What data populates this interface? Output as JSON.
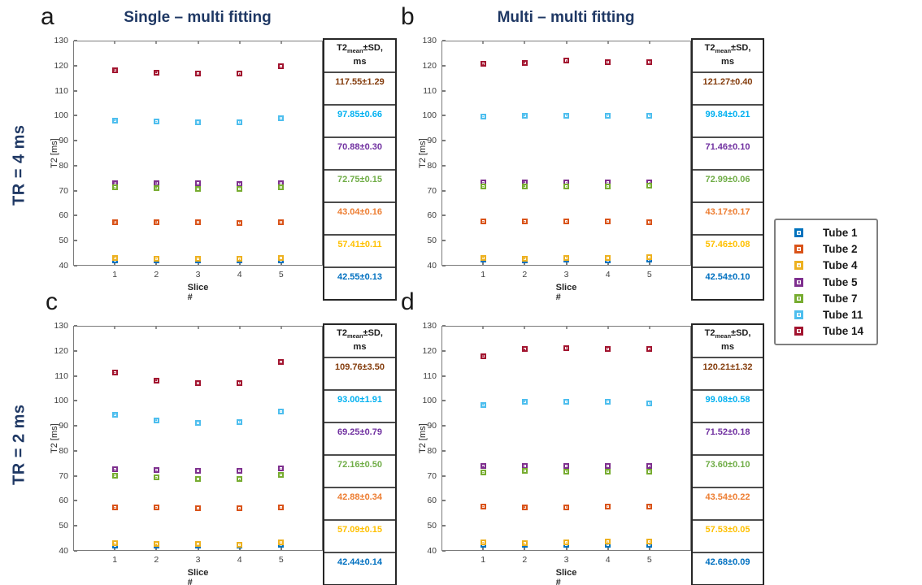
{
  "figure": {
    "panels": [
      {
        "letter": "a",
        "title": "Single – multi fitting"
      },
      {
        "letter": "b",
        "title": "Multi – multi fitting"
      },
      {
        "letter": "c",
        "title": ""
      },
      {
        "letter": "d",
        "title": ""
      }
    ],
    "row_labels": [
      "TR = 4 ms",
      "TR = 2 ms"
    ],
    "title_color": "#1F3864"
  },
  "table_header": {
    "t2": "T2",
    "sub": "mean",
    "rest": "±SD,",
    "unit": "ms"
  },
  "legend": {
    "items": [
      {
        "label": "Tube 1",
        "color": "#0072BD"
      },
      {
        "label": "Tube 2",
        "color": "#D95319"
      },
      {
        "label": "Tube 4",
        "color": "#EDB120"
      },
      {
        "label": "Tube 5",
        "color": "#7E2F8E"
      },
      {
        "label": "Tube 7",
        "color": "#77AC30"
      },
      {
        "label": "Tube 11",
        "color": "#4DBEEE"
      },
      {
        "label": "Tube 14",
        "color": "#A2142F"
      }
    ]
  },
  "chart_data": [
    {
      "id": "a",
      "type": "scatter",
      "title": "Single – multi fitting",
      "row_label": "TR = 4 ms",
      "xlabel": "Slice #",
      "ylabel": "T2 [ms]",
      "x": [
        1,
        2,
        3,
        4,
        5
      ],
      "xlim": [
        0,
        6
      ],
      "ylim": [
        40,
        130
      ],
      "yticks": [
        40,
        50,
        60,
        70,
        80,
        90,
        100,
        110,
        120,
        130
      ],
      "series": [
        {
          "name": "Tube 1",
          "color": "#0072BD",
          "values": [
            42.2,
            42.0,
            42.1,
            42.0,
            42.2
          ]
        },
        {
          "name": "Tube 2",
          "color": "#D95319",
          "values": [
            57.5,
            57.5,
            57.4,
            57.2,
            57.5
          ]
        },
        {
          "name": "Tube 4",
          "color": "#EDB120",
          "values": [
            43.1,
            42.7,
            42.9,
            42.6,
            43.0
          ]
        },
        {
          "name": "Tube 5",
          "color": "#7E2F8E",
          "values": [
            73.1,
            73.0,
            72.9,
            72.8,
            73.0
          ]
        },
        {
          "name": "Tube 7",
          "color": "#77AC30",
          "values": [
            71.3,
            71.1,
            70.8,
            70.7,
            71.4
          ]
        },
        {
          "name": "Tube 11",
          "color": "#4DBEEE",
          "values": [
            98.1,
            97.6,
            97.4,
            97.4,
            99.0
          ]
        },
        {
          "name": "Tube 14",
          "color": "#A2142F",
          "values": [
            118.2,
            117.2,
            116.7,
            116.7,
            119.7
          ]
        }
      ],
      "table_rows": [
        {
          "text": "117.55±1.29",
          "color": "#843C0C"
        },
        {
          "text": "97.85±0.66",
          "color": "#00B0F0"
        },
        {
          "text": "70.88±0.30",
          "color": "#7030A0"
        },
        {
          "text": "72.75±0.15",
          "color": "#70AD47"
        },
        {
          "text": "43.04±0.16",
          "color": "#ED7D31"
        },
        {
          "text": "57.41±0.11",
          "color": "#FFC000"
        },
        {
          "text": "42.55±0.13",
          "color": "#0070C0"
        }
      ]
    },
    {
      "id": "b",
      "type": "scatter",
      "title": "Multi – multi fitting",
      "row_label": "TR = 4 ms",
      "xlabel": "Slice #",
      "ylabel": "T2 [ms]",
      "x": [
        1,
        2,
        3,
        4,
        5
      ],
      "xlim": [
        0,
        6
      ],
      "ylim": [
        40,
        130
      ],
      "yticks": [
        40,
        50,
        60,
        70,
        80,
        90,
        100,
        110,
        120,
        130
      ],
      "series": [
        {
          "name": "Tube 1",
          "color": "#0072BD",
          "values": [
            42.3,
            42.2,
            42.3,
            42.2,
            42.3
          ]
        },
        {
          "name": "Tube 2",
          "color": "#D95319",
          "values": [
            57.7,
            57.7,
            57.6,
            57.6,
            57.4
          ]
        },
        {
          "name": "Tube 4",
          "color": "#EDB120",
          "values": [
            43.2,
            42.9,
            43.2,
            43.0,
            43.4
          ]
        },
        {
          "name": "Tube 5",
          "color": "#7E2F8E",
          "values": [
            73.3,
            73.4,
            73.3,
            73.3,
            73.3
          ]
        },
        {
          "name": "Tube 7",
          "color": "#77AC30",
          "values": [
            71.6,
            71.8,
            71.6,
            71.6,
            71.9
          ]
        },
        {
          "name": "Tube 11",
          "color": "#4DBEEE",
          "values": [
            99.5,
            100.0,
            100.0,
            100.0,
            100.0
          ]
        },
        {
          "name": "Tube 14",
          "color": "#A2142F",
          "values": [
            120.6,
            121.1,
            121.9,
            121.4,
            121.4
          ]
        }
      ],
      "table_rows": [
        {
          "text": "121.27±0.40",
          "color": "#843C0C"
        },
        {
          "text": "99.84±0.21",
          "color": "#00B0F0"
        },
        {
          "text": "71.46±0.10",
          "color": "#7030A0"
        },
        {
          "text": "72.99±0.06",
          "color": "#70AD47"
        },
        {
          "text": "43.17±0.17",
          "color": "#ED7D31"
        },
        {
          "text": "57.46±0.08",
          "color": "#FFC000"
        },
        {
          "text": "42.54±0.10",
          "color": "#0070C0"
        }
      ]
    },
    {
      "id": "c",
      "type": "scatter",
      "title": "",
      "row_label": "TR = 2 ms",
      "xlabel": "Slice #",
      "ylabel": "T2 [ms]",
      "x": [
        1,
        2,
        3,
        4,
        5
      ],
      "xlim": [
        0,
        6
      ],
      "ylim": [
        40,
        130
      ],
      "yticks": [
        40,
        50,
        60,
        70,
        80,
        90,
        100,
        110,
        120,
        130
      ],
      "series": [
        {
          "name": "Tube 1",
          "color": "#0072BD",
          "values": [
            42.2,
            42.1,
            42.1,
            42.0,
            42.3
          ]
        },
        {
          "name": "Tube 2",
          "color": "#D95319",
          "values": [
            57.3,
            57.3,
            57.0,
            57.0,
            57.3
          ]
        },
        {
          "name": "Tube 4",
          "color": "#EDB120",
          "values": [
            43.0,
            42.6,
            42.6,
            42.4,
            43.5
          ]
        },
        {
          "name": "Tube 5",
          "color": "#7E2F8E",
          "values": [
            72.6,
            72.3,
            71.9,
            71.9,
            72.9
          ]
        },
        {
          "name": "Tube 7",
          "color": "#77AC30",
          "values": [
            70.0,
            69.4,
            68.7,
            68.6,
            70.5
          ]
        },
        {
          "name": "Tube 11",
          "color": "#4DBEEE",
          "values": [
            94.5,
            92.3,
            91.2,
            91.5,
            95.7
          ]
        },
        {
          "name": "Tube 14",
          "color": "#A2142F",
          "values": [
            111.2,
            108.2,
            107.1,
            107.1,
            115.4
          ]
        }
      ],
      "table_rows": [
        {
          "text": "109.76±3.50",
          "color": "#843C0C"
        },
        {
          "text": "93.00±1.91",
          "color": "#00B0F0"
        },
        {
          "text": "69.25±0.79",
          "color": "#7030A0"
        },
        {
          "text": "72.16±0.50",
          "color": "#70AD47"
        },
        {
          "text": "42.88±0.34",
          "color": "#ED7D31"
        },
        {
          "text": "57.09±0.15",
          "color": "#FFC000"
        },
        {
          "text": "42.44±0.14",
          "color": "#0070C0"
        }
      ]
    },
    {
      "id": "d",
      "type": "scatter",
      "title": "",
      "row_label": "TR = 2 ms",
      "xlabel": "Slice #",
      "ylabel": "T2 [ms]",
      "x": [
        1,
        2,
        3,
        4,
        5
      ],
      "xlim": [
        0,
        6
      ],
      "ylim": [
        40,
        130
      ],
      "yticks": [
        40,
        50,
        60,
        70,
        80,
        90,
        100,
        110,
        120,
        130
      ],
      "series": [
        {
          "name": "Tube 1",
          "color": "#0072BD",
          "values": [
            42.4,
            42.3,
            42.4,
            42.4,
            42.4
          ]
        },
        {
          "name": "Tube 2",
          "color": "#D95319",
          "values": [
            57.6,
            57.5,
            57.5,
            57.6,
            57.8
          ]
        },
        {
          "name": "Tube 4",
          "color": "#EDB120",
          "values": [
            43.4,
            43.0,
            43.4,
            43.6,
            43.7
          ]
        },
        {
          "name": "Tube 5",
          "color": "#7E2F8E",
          "values": [
            73.8,
            73.9,
            73.9,
            73.9,
            73.8
          ]
        },
        {
          "name": "Tube 7",
          "color": "#77AC30",
          "values": [
            71.3,
            71.9,
            71.8,
            71.8,
            71.6
          ]
        },
        {
          "name": "Tube 11",
          "color": "#4DBEEE",
          "values": [
            98.4,
            99.7,
            99.5,
            99.5,
            99.0
          ]
        },
        {
          "name": "Tube 14",
          "color": "#A2142F",
          "values": [
            117.9,
            120.6,
            121.1,
            120.9,
            120.6
          ]
        }
      ],
      "table_rows": [
        {
          "text": "120.21±1.32",
          "color": "#843C0C"
        },
        {
          "text": "99.08±0.58",
          "color": "#00B0F0"
        },
        {
          "text": "71.52±0.18",
          "color": "#7030A0"
        },
        {
          "text": "73.60±0.10",
          "color": "#70AD47"
        },
        {
          "text": "43.54±0.22",
          "color": "#ED7D31"
        },
        {
          "text": "57.53±0.05",
          "color": "#FFC000"
        },
        {
          "text": "42.68±0.09",
          "color": "#0070C0"
        }
      ]
    }
  ]
}
